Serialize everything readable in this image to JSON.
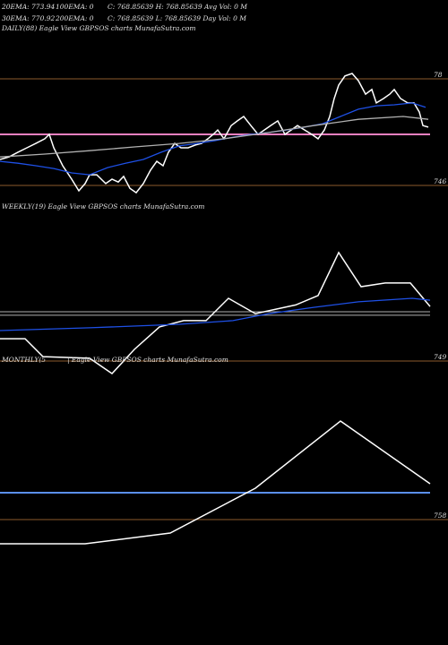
{
  "header": {
    "rows": [
      [
        "20EMA: 773.94",
        "100EMA: 0",
        "C: 768.85639 H: 768.85639 Avg Vol: 0 M"
      ],
      [
        "30EMA: 770.92",
        "200EMA: 0",
        "C: 768.85639 L: 768.85639 Day Vol: 0 M"
      ]
    ]
  },
  "chart_data": [
    {
      "type": "line",
      "title": "DAILY(88) Eagle View GBPSOS charts MunafaSutra.com",
      "xlim": [
        0,
        480
      ],
      "ylim": [
        742.3,
        793.7
      ],
      "yticks": [
        {
          "value": 780,
          "label": "78"
        },
        746
      ],
      "grid_color": "#8b5a2b",
      "levels": [
        {
          "value": 762.3,
          "color": "#f080c0"
        }
      ],
      "series": [
        {
          "color": "#ffffff",
          "x": [
            0,
            10,
            20,
            30,
            40,
            50,
            55,
            60,
            70,
            80,
            88,
            95,
            100,
            108,
            113,
            118,
            125,
            132,
            138,
            145,
            152,
            160,
            168,
            175,
            182,
            188,
            195,
            202,
            210,
            218,
            225,
            232,
            238,
            243,
            250,
            258,
            265,
            272,
            280,
            288,
            295,
            302,
            310,
            318,
            325,
            332,
            340,
            348,
            355,
            362,
            368,
            373,
            378,
            385,
            393,
            400,
            408,
            415,
            420,
            428,
            435,
            440,
            447,
            455,
            462,
            468,
            472,
            478
          ],
          "values": [
            754.3,
            755.1,
            756.6,
            758.0,
            759.4,
            760.9,
            762.3,
            758.0,
            752.3,
            748.0,
            744.3,
            746.6,
            749.4,
            749.4,
            748.0,
            746.6,
            748.0,
            747.1,
            748.9,
            745.1,
            743.7,
            746.6,
            750.9,
            753.7,
            752.3,
            756.6,
            759.4,
            758.0,
            758.0,
            758.9,
            759.4,
            760.9,
            762.3,
            763.7,
            760.9,
            765.1,
            766.6,
            768.0,
            765.1,
            762.3,
            763.7,
            765.1,
            766.6,
            762.3,
            763.7,
            765.1,
            763.7,
            762.3,
            760.9,
            763.7,
            768.0,
            773.7,
            778.0,
            780.9,
            781.7,
            779.4,
            775.1,
            776.6,
            772.3,
            773.7,
            775.1,
            776.6,
            773.7,
            772.3,
            772.3,
            769.4,
            765.1,
            764.6
          ]
        },
        {
          "color": "#1e50e6",
          "x": [
            0,
            20,
            40,
            60,
            80,
            100,
            120,
            140,
            160,
            180,
            200,
            220,
            240,
            260,
            280,
            300,
            320,
            340,
            360,
            380,
            400,
            420,
            440,
            460,
            475
          ],
          "values": [
            753.7,
            753.1,
            752.3,
            751.4,
            750.0,
            749.4,
            751.7,
            753.1,
            754.3,
            756.6,
            758.6,
            759.4,
            760.3,
            761.4,
            762.3,
            762.9,
            763.7,
            764.6,
            765.7,
            768.0,
            770.3,
            771.4,
            771.7,
            772.3,
            770.9
          ]
        },
        {
          "color": "#b0b0b0",
          "x": [
            0,
            50,
            100,
            150,
            200,
            250,
            300,
            350,
            400,
            450,
            478
          ],
          "values": [
            755.1,
            756.0,
            757.1,
            758.3,
            759.4,
            760.9,
            762.9,
            765.1,
            767.1,
            768.0,
            767.1
          ]
        }
      ]
    },
    {
      "type": "line",
      "title": "WEEKLY(19) Eagle View GBPSOS charts MunafaSutra.com",
      "xlim": [
        0,
        480
      ],
      "ylim": [
        747,
        799
      ],
      "yticks": [
        749
      ],
      "grid_color": "#8b5a2b",
      "levels": [
        {
          "value": 764.7,
          "color": "#b0b0b0"
        },
        {
          "value": 763.6,
          "color": "#b0b0b0"
        }
      ],
      "series": [
        {
          "color": "#ffffff",
          "x": [
            0,
            28,
            48,
            100,
            125,
            150,
            178,
            205,
            230,
            255,
            285,
            330,
            355,
            378,
            403,
            430,
            458,
            480
          ],
          "values": [
            756.1,
            756.1,
            750.4,
            749.9,
            745.0,
            752.7,
            759.9,
            761.9,
            761.9,
            769.0,
            764.1,
            766.9,
            769.9,
            783.6,
            772.7,
            773.9,
            773.9,
            766.4
          ]
        },
        {
          "color": "#1e50e6",
          "x": [
            0,
            100,
            200,
            260,
            300,
            350,
            400,
            460,
            480
          ],
          "values": [
            758.7,
            759.6,
            760.7,
            761.9,
            764.1,
            766.1,
            767.9,
            769.0,
            768.4
          ]
        }
      ]
    },
    {
      "type": "line",
      "title": "MONTHLY(5",
      "subtitle": "| Eagle View GBPSOS charts MunafaSutra.com",
      "xlim": [
        0,
        480
      ],
      "ylim": [
        688,
        848
      ],
      "yticks": [
        758
      ],
      "grid_color": "#8b5a2b",
      "levels": [
        {
          "value": 773,
          "color": "#5a8ff0"
        }
      ],
      "series": [
        {
          "color": "#ffffff",
          "x": [
            0,
            95,
            190,
            285,
            380,
            480
          ],
          "values": [
            744.5,
            744.5,
            750.5,
            775.5,
            813,
            778
          ]
        }
      ]
    }
  ]
}
